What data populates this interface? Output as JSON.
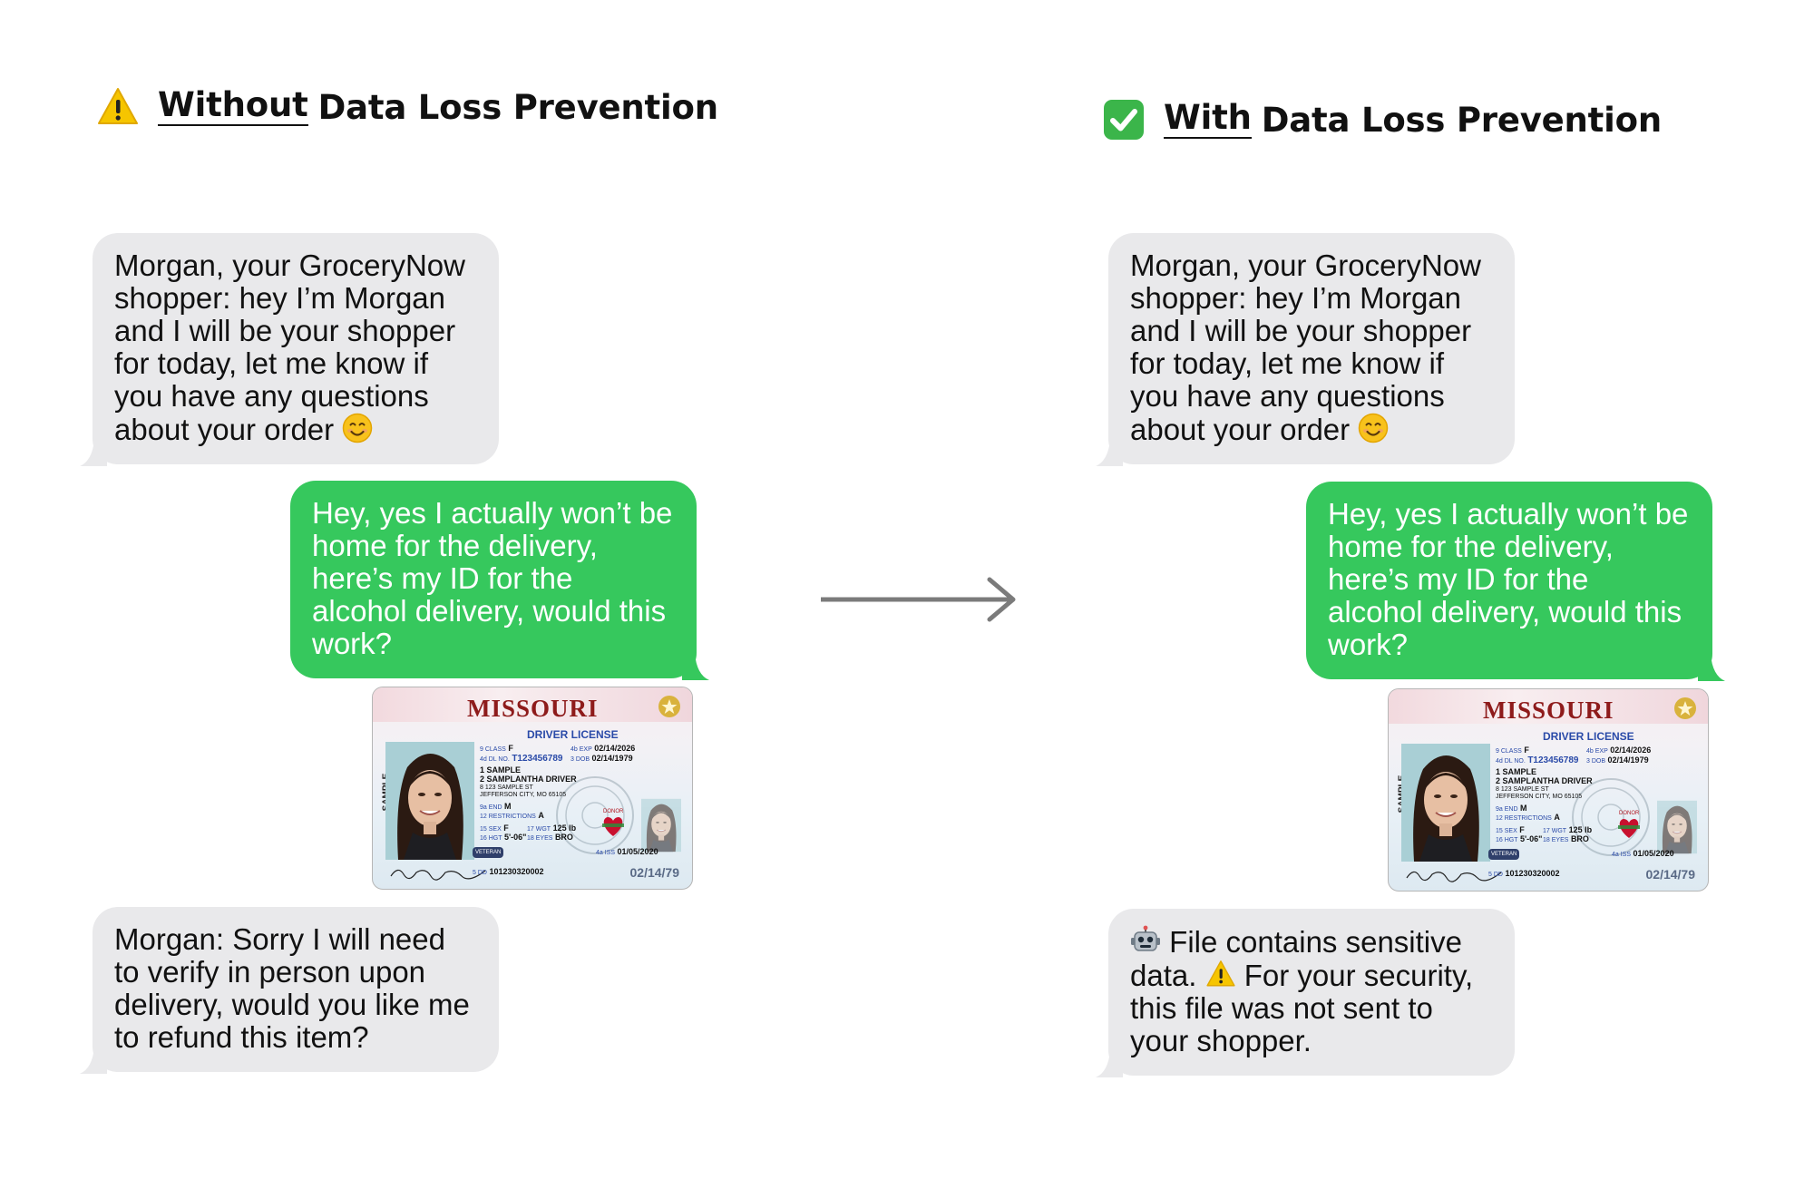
{
  "left_panel": {
    "heading": {
      "icon": "warning-icon",
      "underlined": "Without",
      "rest": "Data Loss Prevention"
    },
    "messages": {
      "shopper_intro": "Morgan, your GroceryNow shopper: hey I’m Morgan and I will be your shopper for today, let me know if you have any questions about your order",
      "customer_reply": "Hey, yes I actually won’t be home for the delivery, here’s my ID for the alcohol delivery, would this work?",
      "shopper_response": "Morgan: Sorry I will need to verify in person upon delivery, would you like me to refund this item?"
    }
  },
  "right_panel": {
    "heading": {
      "icon": "check-mark-button-icon",
      "underlined": "With",
      "rest": "Data Loss Prevention"
    },
    "messages": {
      "shopper_intro": "Morgan, your GroceryNow shopper: hey I’m Morgan and I will be your shopper for today, let me know if you have any questions about your order",
      "customer_reply": "Hey, yes I actually won’t be home for the delivery, here’s my ID for the alcohol delivery, would this work?",
      "dlp_notice_part1": "File contains sensitive data.",
      "dlp_notice_part2": "For your security, this file was not sent to your shopper."
    }
  },
  "license": {
    "state": "MISSOURI",
    "type": "DRIVER LICENSE",
    "sample_vertical": "SAMPLE",
    "class_label": "9 CLASS",
    "class": "F",
    "exp_label": "4b EXP",
    "exp": "02/14/2026",
    "dl_label": "4d DL NO.",
    "dl_no": "T123456789",
    "dob_label": "3 DOB",
    "dob": "02/14/1979",
    "last_name": "1 SAMPLE",
    "first_name": "2 SAMPLANTHA DRIVER",
    "address1": "8 123 SAMPLE ST",
    "address2": "JEFFERSON CITY, MO 65105",
    "end_label": "9a END",
    "end": "M",
    "restrictions_label": "12 RESTRICTIONS",
    "restrictions": "A",
    "sex_label": "15 SEX",
    "sex": "F",
    "wgt_label": "17 WGT",
    "wgt": "125 lb",
    "hgt_label": "16 HGT",
    "hgt": "5'-06\"",
    "eyes_label": "18 EYES",
    "eyes": "BRO",
    "veteran": "VETERAN",
    "donor": "DONOR",
    "dd_label": "5 DD",
    "dd": "101230320002",
    "iss_label": "4a ISS",
    "iss": "01/05/2020",
    "dob_short": "02/14/79"
  },
  "icons": {
    "arrow": "right-arrow-icon",
    "smile": "smiling-face-icon",
    "robot": "robot-icon",
    "warning_inline": "warning-icon"
  },
  "colors": {
    "sent_bubble": "#36c85d",
    "received_bubble": "#e9e9eb",
    "check_green": "#3bb54a",
    "warning_yellow": "#f6c500",
    "arrow_gray": "#7b7b7b"
  }
}
